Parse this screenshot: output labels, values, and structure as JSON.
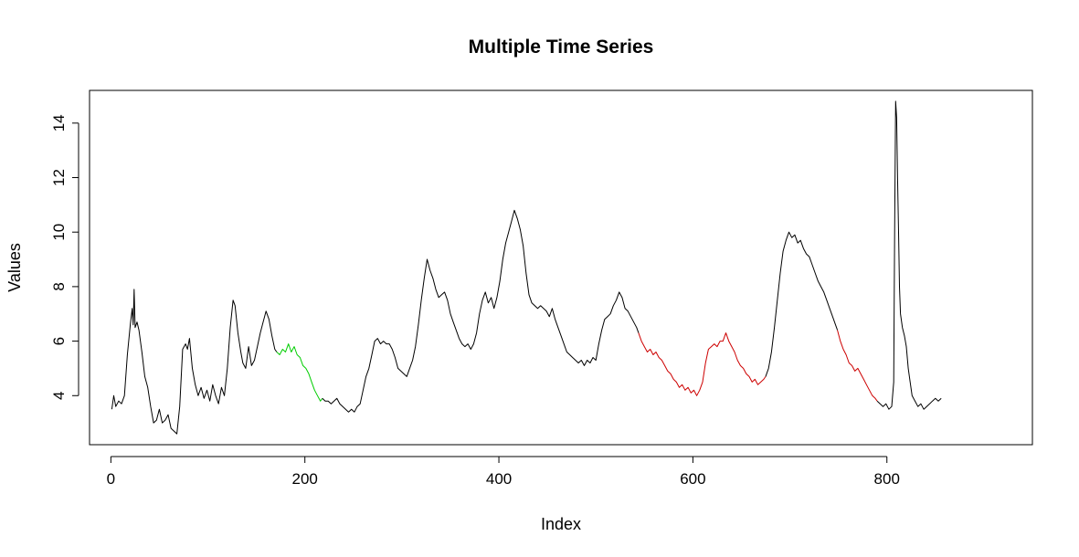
{
  "chart_data": {
    "type": "line",
    "title": "Multiple Time Series",
    "xlabel": "Index",
    "ylabel": "Values",
    "xlim": [
      -22,
      950
    ],
    "ylim": [
      2.2,
      15.2
    ],
    "x_ticks": [
      0,
      200,
      400,
      600,
      800
    ],
    "y_ticks": [
      4,
      6,
      8,
      10,
      12,
      14
    ],
    "grid": false,
    "legend": "none",
    "colors": {
      "black": "#000000",
      "green": "#00cd00",
      "red": "#cd0000"
    },
    "series": [
      {
        "color": "#000000",
        "points": [
          [
            1,
            3.5
          ],
          [
            3,
            4.0
          ],
          [
            5,
            3.6
          ],
          [
            8,
            3.8
          ],
          [
            11,
            3.7
          ],
          [
            14,
            4.0
          ],
          [
            17,
            5.5
          ],
          [
            20,
            6.6
          ],
          [
            22,
            7.2
          ],
          [
            23,
            6.6
          ],
          [
            24,
            7.9
          ],
          [
            25,
            6.5
          ],
          [
            27,
            6.7
          ],
          [
            29,
            6.4
          ],
          [
            32,
            5.6
          ],
          [
            35,
            4.7
          ],
          [
            38,
            4.3
          ],
          [
            41,
            3.6
          ],
          [
            44,
            3.0
          ],
          [
            47,
            3.1
          ],
          [
            50,
            3.5
          ],
          [
            53,
            3.0
          ],
          [
            56,
            3.1
          ],
          [
            59,
            3.3
          ],
          [
            62,
            2.8
          ],
          [
            65,
            2.7
          ],
          [
            68,
            2.6
          ],
          [
            71,
            3.6
          ],
          [
            74,
            5.7
          ],
          [
            77,
            5.9
          ],
          [
            79,
            5.7
          ],
          [
            81,
            6.1
          ],
          [
            84,
            5.0
          ],
          [
            87,
            4.4
          ],
          [
            90,
            4.0
          ],
          [
            93,
            4.3
          ],
          [
            96,
            3.9
          ],
          [
            99,
            4.2
          ],
          [
            102,
            3.8
          ],
          [
            105,
            4.4
          ],
          [
            108,
            4.0
          ],
          [
            111,
            3.7
          ],
          [
            114,
            4.3
          ],
          [
            117,
            4.0
          ],
          [
            120,
            5.0
          ],
          [
            123,
            6.5
          ],
          [
            126,
            7.5
          ],
          [
            128,
            7.3
          ],
          [
            131,
            6.3
          ],
          [
            134,
            5.6
          ],
          [
            136,
            5.2
          ],
          [
            139,
            5.0
          ],
          [
            142,
            5.8
          ],
          [
            145,
            5.1
          ],
          [
            148,
            5.3
          ],
          [
            151,
            5.8
          ],
          [
            154,
            6.3
          ],
          [
            157,
            6.7
          ],
          [
            160,
            7.1
          ],
          [
            163,
            6.8
          ],
          [
            166,
            6.2
          ],
          [
            169,
            5.7
          ],
          [
            171,
            5.6
          ]
        ]
      },
      {
        "color": "#00cd00",
        "points": [
          [
            171,
            5.6
          ],
          [
            174,
            5.5
          ],
          [
            177,
            5.7
          ],
          [
            180,
            5.6
          ],
          [
            183,
            5.9
          ],
          [
            186,
            5.6
          ],
          [
            189,
            5.8
          ],
          [
            192,
            5.5
          ],
          [
            195,
            5.4
          ],
          [
            198,
            5.1
          ],
          [
            201,
            5.0
          ],
          [
            204,
            4.8
          ],
          [
            207,
            4.5
          ],
          [
            210,
            4.2
          ],
          [
            213,
            4.0
          ],
          [
            216,
            3.8
          ],
          [
            218,
            3.9
          ]
        ]
      },
      {
        "color": "#000000",
        "points": [
          [
            218,
            3.9
          ],
          [
            221,
            3.8
          ],
          [
            224,
            3.8
          ],
          [
            227,
            3.7
          ],
          [
            230,
            3.8
          ],
          [
            233,
            3.9
          ],
          [
            236,
            3.7
          ],
          [
            239,
            3.6
          ],
          [
            242,
            3.5
          ],
          [
            245,
            3.4
          ],
          [
            248,
            3.5
          ],
          [
            251,
            3.4
          ],
          [
            254,
            3.6
          ],
          [
            257,
            3.7
          ],
          [
            260,
            4.2
          ],
          [
            263,
            4.7
          ],
          [
            266,
            5.0
          ],
          [
            269,
            5.5
          ],
          [
            272,
            6.0
          ],
          [
            275,
            6.1
          ],
          [
            278,
            5.9
          ],
          [
            281,
            6.0
          ],
          [
            284,
            5.9
          ],
          [
            287,
            5.9
          ],
          [
            290,
            5.7
          ],
          [
            293,
            5.4
          ],
          [
            296,
            5.0
          ],
          [
            299,
            4.9
          ],
          [
            302,
            4.8
          ],
          [
            305,
            4.7
          ],
          [
            308,
            5.0
          ],
          [
            311,
            5.3
          ],
          [
            314,
            5.8
          ],
          [
            317,
            6.6
          ],
          [
            320,
            7.5
          ],
          [
            323,
            8.3
          ],
          [
            326,
            9.0
          ],
          [
            329,
            8.6
          ],
          [
            332,
            8.3
          ],
          [
            335,
            7.9
          ],
          [
            338,
            7.6
          ],
          [
            341,
            7.7
          ],
          [
            344,
            7.8
          ],
          [
            347,
            7.5
          ],
          [
            350,
            7.0
          ],
          [
            353,
            6.7
          ],
          [
            356,
            6.4
          ],
          [
            359,
            6.1
          ],
          [
            362,
            5.9
          ],
          [
            365,
            5.8
          ],
          [
            368,
            5.9
          ],
          [
            371,
            5.7
          ],
          [
            374,
            5.9
          ],
          [
            377,
            6.3
          ],
          [
            380,
            7.0
          ],
          [
            383,
            7.5
          ],
          [
            386,
            7.8
          ],
          [
            389,
            7.4
          ],
          [
            392,
            7.6
          ],
          [
            395,
            7.2
          ],
          [
            398,
            7.6
          ],
          [
            401,
            8.2
          ],
          [
            404,
            9.0
          ],
          [
            407,
            9.6
          ],
          [
            410,
            10.0
          ],
          [
            413,
            10.4
          ],
          [
            416,
            10.8
          ],
          [
            419,
            10.5
          ],
          [
            422,
            10.1
          ],
          [
            425,
            9.5
          ],
          [
            428,
            8.5
          ],
          [
            431,
            7.7
          ],
          [
            434,
            7.4
          ],
          [
            437,
            7.3
          ],
          [
            440,
            7.2
          ],
          [
            443,
            7.3
          ],
          [
            446,
            7.2
          ],
          [
            449,
            7.1
          ],
          [
            452,
            6.9
          ],
          [
            455,
            7.2
          ],
          [
            458,
            6.8
          ],
          [
            461,
            6.5
          ],
          [
            464,
            6.2
          ],
          [
            467,
            5.9
          ],
          [
            470,
            5.6
          ],
          [
            473,
            5.5
          ],
          [
            476,
            5.4
          ],
          [
            479,
            5.3
          ],
          [
            482,
            5.2
          ],
          [
            485,
            5.3
          ],
          [
            488,
            5.1
          ],
          [
            491,
            5.3
          ],
          [
            494,
            5.2
          ],
          [
            497,
            5.4
          ],
          [
            500,
            5.3
          ],
          [
            503,
            5.9
          ],
          [
            506,
            6.4
          ],
          [
            509,
            6.8
          ],
          [
            512,
            6.9
          ],
          [
            515,
            7.0
          ],
          [
            518,
            7.3
          ],
          [
            521,
            7.5
          ],
          [
            524,
            7.8
          ],
          [
            527,
            7.6
          ],
          [
            530,
            7.2
          ],
          [
            533,
            7.1
          ],
          [
            536,
            6.9
          ],
          [
            539,
            6.7
          ],
          [
            542,
            6.5
          ],
          [
            544,
            6.3
          ]
        ]
      },
      {
        "color": "#cd0000",
        "points": [
          [
            544,
            6.3
          ],
          [
            547,
            6.0
          ],
          [
            550,
            5.8
          ],
          [
            553,
            5.6
          ],
          [
            556,
            5.7
          ],
          [
            559,
            5.5
          ],
          [
            562,
            5.6
          ],
          [
            565,
            5.4
          ],
          [
            568,
            5.3
          ],
          [
            571,
            5.1
          ],
          [
            574,
            4.9
          ],
          [
            577,
            4.8
          ],
          [
            580,
            4.6
          ],
          [
            583,
            4.5
          ],
          [
            586,
            4.3
          ],
          [
            589,
            4.4
          ],
          [
            592,
            4.2
          ],
          [
            595,
            4.3
          ],
          [
            598,
            4.1
          ],
          [
            601,
            4.2
          ],
          [
            604,
            4.0
          ],
          [
            607,
            4.2
          ],
          [
            610,
            4.5
          ],
          [
            613,
            5.2
          ],
          [
            616,
            5.7
          ],
          [
            619,
            5.8
          ],
          [
            622,
            5.9
          ],
          [
            625,
            5.8
          ],
          [
            628,
            6.0
          ],
          [
            631,
            6.0
          ],
          [
            634,
            6.3
          ],
          [
            637,
            6.0
          ],
          [
            640,
            5.8
          ],
          [
            643,
            5.6
          ],
          [
            646,
            5.3
          ],
          [
            649,
            5.1
          ],
          [
            652,
            5.0
          ],
          [
            655,
            4.8
          ],
          [
            658,
            4.7
          ],
          [
            661,
            4.5
          ],
          [
            664,
            4.6
          ],
          [
            667,
            4.4
          ],
          [
            670,
            4.5
          ],
          [
            673,
            4.6
          ],
          [
            675,
            4.7
          ]
        ]
      },
      {
        "color": "#000000",
        "points": [
          [
            675,
            4.7
          ],
          [
            678,
            5.0
          ],
          [
            681,
            5.6
          ],
          [
            684,
            6.5
          ],
          [
            687,
            7.5
          ],
          [
            690,
            8.5
          ],
          [
            693,
            9.3
          ],
          [
            696,
            9.7
          ],
          [
            699,
            10.0
          ],
          [
            702,
            9.8
          ],
          [
            705,
            9.9
          ],
          [
            708,
            9.6
          ],
          [
            711,
            9.7
          ],
          [
            714,
            9.4
          ],
          [
            717,
            9.2
          ],
          [
            720,
            9.1
          ],
          [
            723,
            8.8
          ],
          [
            726,
            8.5
          ],
          [
            729,
            8.2
          ],
          [
            732,
            8.0
          ],
          [
            735,
            7.8
          ],
          [
            738,
            7.5
          ],
          [
            741,
            7.2
          ],
          [
            744,
            6.9
          ],
          [
            747,
            6.6
          ],
          [
            749,
            6.4
          ]
        ]
      },
      {
        "color": "#cd0000",
        "points": [
          [
            749,
            6.4
          ],
          [
            752,
            6.0
          ],
          [
            755,
            5.7
          ],
          [
            758,
            5.5
          ],
          [
            761,
            5.2
          ],
          [
            764,
            5.1
          ],
          [
            767,
            4.9
          ],
          [
            770,
            5.0
          ],
          [
            773,
            4.8
          ],
          [
            776,
            4.6
          ],
          [
            779,
            4.4
          ],
          [
            782,
            4.2
          ],
          [
            785,
            4.0
          ],
          [
            788,
            3.9
          ],
          [
            790,
            3.8
          ]
        ]
      },
      {
        "color": "#000000",
        "points": [
          [
            790,
            3.8
          ],
          [
            793,
            3.7
          ],
          [
            796,
            3.6
          ],
          [
            799,
            3.7
          ],
          [
            802,
            3.5
          ],
          [
            805,
            3.6
          ],
          [
            807,
            4.5
          ],
          [
            808,
            10.0
          ],
          [
            809,
            14.8
          ],
          [
            810,
            14.2
          ],
          [
            811,
            12.0
          ],
          [
            812,
            10.0
          ],
          [
            813,
            8.0
          ],
          [
            814,
            7.0
          ],
          [
            816,
            6.5
          ],
          [
            818,
            6.2
          ],
          [
            820,
            5.8
          ],
          [
            822,
            5.0
          ],
          [
            824,
            4.5
          ],
          [
            826,
            4.0
          ],
          [
            829,
            3.8
          ],
          [
            832,
            3.6
          ],
          [
            835,
            3.7
          ],
          [
            838,
            3.5
          ],
          [
            841,
            3.6
          ],
          [
            844,
            3.7
          ],
          [
            847,
            3.8
          ],
          [
            850,
            3.9
          ],
          [
            853,
            3.8
          ],
          [
            856,
            3.9
          ]
        ]
      }
    ]
  }
}
